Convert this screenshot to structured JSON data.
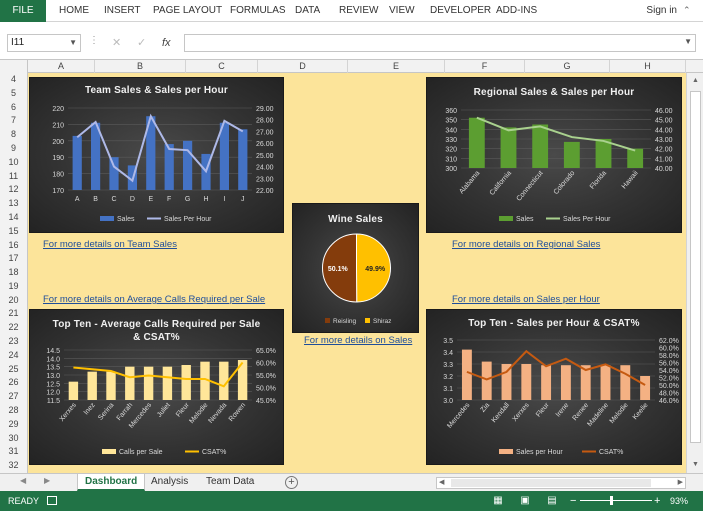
{
  "ribbon": {
    "file": "FILE",
    "tabs": [
      "HOME",
      "INSERT",
      "PAGE LAYOUT",
      "FORMULAS",
      "DATA",
      "REVIEW",
      "VIEW",
      "DEVELOPER",
      "ADD-INS"
    ],
    "signin": "Sign in"
  },
  "formula_bar": {
    "name_box": "I11",
    "cancel": "✕",
    "enter": "✓",
    "fx": "fx",
    "value": ""
  },
  "columns": [
    "A",
    "B",
    "C",
    "D",
    "E",
    "F",
    "G",
    "H"
  ],
  "rows": [
    "4",
    "5",
    "6",
    "7",
    "8",
    "9",
    "10",
    "11",
    "12",
    "13",
    "14",
    "15",
    "16",
    "17",
    "18",
    "19",
    "20",
    "21",
    "22",
    "23",
    "24",
    "25",
    "26",
    "27",
    "28",
    "29",
    "30",
    "31",
    "32"
  ],
  "links": {
    "team": "For more details on Team Sales",
    "regional": "For more details on Regional Sales",
    "calls": "For more details on Average Calls Required per Sale",
    "wine": "For more details on Sales",
    "sph": "For more details on Sales per Hour"
  },
  "sheet_tabs": [
    "Dashboard",
    "Analysis",
    "Team Data"
  ],
  "status": {
    "ready": "READY",
    "zoom": "93%"
  },
  "colors": {
    "excel_green": "#217346",
    "sheet_bg": "#fce49a",
    "link": "#1f4e9a"
  },
  "chart_data": [
    {
      "type": "bar",
      "title": "Team Sales & Sales per Hour",
      "categories": [
        "A",
        "B",
        "C",
        "D",
        "E",
        "F",
        "G",
        "H",
        "I",
        "J"
      ],
      "series": [
        {
          "name": "Sales",
          "type": "bar",
          "axis": "left",
          "color": "#4472c4",
          "values": [
            203,
            211,
            190,
            185,
            215,
            198,
            200,
            192,
            211,
            207
          ]
        },
        {
          "name": "Sales Per Hour",
          "type": "line",
          "axis": "right",
          "color": "#aeb9e8",
          "values": [
            26.5,
            27.8,
            24.0,
            22.8,
            28.3,
            25.5,
            25.4,
            23.6,
            27.9,
            27.0
          ]
        }
      ],
      "yticks_left": [
        "170",
        "180",
        "190",
        "200",
        "210",
        "220"
      ],
      "yticks_right": [
        "22.00",
        "23.00",
        "24.00",
        "25.00",
        "26.00",
        "27.00",
        "28.00",
        "29.00"
      ],
      "ylim_left": [
        170,
        220
      ],
      "ylim_right": [
        22,
        29
      ],
      "legend": "bottom"
    },
    {
      "type": "bar",
      "title": "Regional Sales & Sales per Hour",
      "categories": [
        "Alabama",
        "California",
        "Connecticut",
        "Colorado",
        "Florida",
        "Hawaii"
      ],
      "series": [
        {
          "name": "Sales",
          "type": "bar",
          "axis": "left",
          "color": "#5c9e31",
          "values": [
            352,
            342,
            345,
            327,
            330,
            320
          ]
        },
        {
          "name": "Sales Per Hour",
          "type": "line",
          "axis": "right",
          "color": "#a9d18e",
          "values": [
            45.2,
            43.9,
            44.3,
            43.2,
            42.8,
            41.8
          ]
        }
      ],
      "yticks_left": [
        "300",
        "310",
        "320",
        "330",
        "340",
        "350",
        "360"
      ],
      "yticks_right": [
        "40.00",
        "41.00",
        "42.00",
        "43.00",
        "44.00",
        "45.00",
        "46.00"
      ],
      "ylim_left": [
        300,
        360
      ],
      "ylim_right": [
        40,
        46
      ],
      "legend": "bottom"
    },
    {
      "type": "pie",
      "title": "Wine Sales",
      "slices": [
        {
          "name": "Reisling",
          "value": 50.1,
          "label": "50.1%",
          "color": "#843c0c"
        },
        {
          "name": "Shiraz",
          "value": 49.9,
          "label": "49.9%",
          "color": "#ffc000"
        }
      ],
      "legend": "bottom"
    },
    {
      "type": "bar",
      "title": "Top Ten - Average Calls Required per Sale & CSAT%",
      "categories": [
        "Xerxes",
        "Inez",
        "Serina",
        "Farrah",
        "Mercedes",
        "Juliet",
        "Fleur",
        "Melodie",
        "Nevada",
        "Rowen"
      ],
      "series": [
        {
          "name": "Calls per Sale",
          "type": "bar",
          "axis": "left",
          "color": "#ffe699",
          "values": [
            12.6,
            13.2,
            13.2,
            13.5,
            13.5,
            13.5,
            13.6,
            13.8,
            13.8,
            13.9
          ]
        },
        {
          "name": "CSAT%",
          "type": "line",
          "axis": "right",
          "color": "#ffc000",
          "values": [
            58.0,
            57.3,
            56.6,
            54.1,
            54.8,
            54.1,
            53.4,
            53.4,
            50.5,
            60.0
          ]
        }
      ],
      "yticks_left": [
        "11.5",
        "12.0",
        "12.5",
        "13.0",
        "13.5",
        "14.0",
        "14.5"
      ],
      "yticks_right": [
        "45.0%",
        "50.0%",
        "55.0%",
        "60.0%",
        "65.0%"
      ],
      "ylim_left": [
        11.5,
        14.5
      ],
      "ylim_right": [
        45,
        65
      ],
      "legend": "bottom"
    },
    {
      "type": "bar",
      "title": "Top Ten - Sales per Hour & CSAT%",
      "categories": [
        "Mercedes",
        "Zia",
        "Kendall",
        "Xerxes",
        "Fleur",
        "Irene",
        "Renee",
        "Madeline",
        "Melodie",
        "Keelie"
      ],
      "series": [
        {
          "name": "Sales per Hour",
          "type": "bar",
          "axis": "left",
          "color": "#f4b183",
          "values": [
            3.42,
            3.32,
            3.3,
            3.3,
            3.29,
            3.29,
            3.29,
            3.29,
            3.29,
            3.2
          ]
        },
        {
          "name": "CSAT%",
          "type": "line",
          "axis": "right",
          "color": "#c55a11",
          "values": [
            53.5,
            51.5,
            53.5,
            59.0,
            55.0,
            57.0,
            54.0,
            55.5,
            53.0,
            50.0
          ]
        }
      ],
      "yticks_left": [
        "3.0",
        "3.1",
        "3.2",
        "3.3",
        "3.4",
        "3.5"
      ],
      "yticks_right": [
        "46.0%",
        "48.0%",
        "50.0%",
        "52.0%",
        "54.0%",
        "56.0%",
        "58.0%",
        "60.0%",
        "62.0%"
      ],
      "ylim_left": [
        3.0,
        3.5
      ],
      "ylim_right": [
        46,
        62
      ],
      "legend": "bottom"
    }
  ]
}
